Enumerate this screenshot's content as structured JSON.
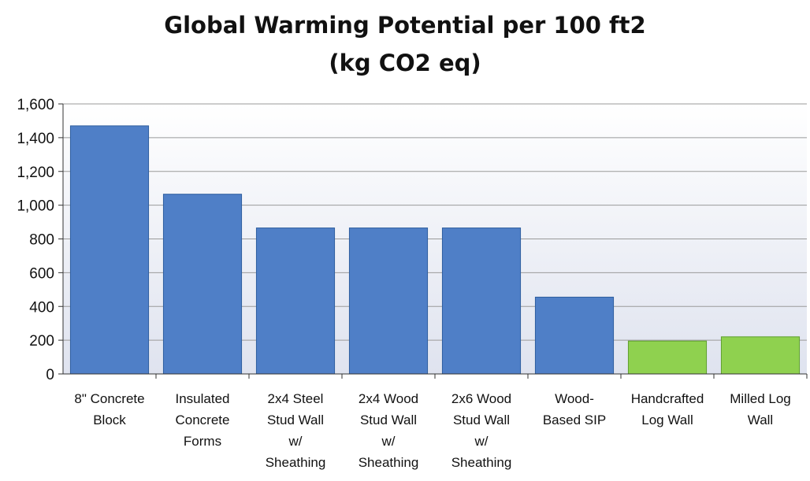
{
  "chart_data": {
    "type": "bar",
    "title_lines": [
      "Global Warming Potential per 100 ft2",
      "(kg CO2 eq)"
    ],
    "xlabel": "",
    "ylabel": "",
    "ylim": [
      0,
      1600
    ],
    "yticks": [
      0,
      200,
      400,
      600,
      800,
      1000,
      1200,
      1400,
      1600
    ],
    "ytick_labels": [
      "0",
      "200",
      "400",
      "600",
      "800",
      "1,000",
      "1,200",
      "1,400",
      "1,600"
    ],
    "grid": true,
    "legend": "none",
    "categories": [
      [
        "8\" Concrete",
        "Block"
      ],
      [
        "Insulated",
        "Concrete",
        "Forms"
      ],
      [
        "2x4 Steel",
        "Stud Wall",
        "w/",
        "Sheathing"
      ],
      [
        "2x4 Wood",
        "Stud Wall",
        "w/",
        "Sheathing"
      ],
      [
        "2x6 Wood",
        "Stud Wall",
        "w/",
        "Sheathing"
      ],
      [
        "Wood-",
        "Based SIP"
      ],
      [
        "Handcrafted",
        "Log Wall"
      ],
      [
        "Milled Log",
        "Wall"
      ]
    ],
    "values": [
      1470,
      1065,
      865,
      865,
      865,
      455,
      195,
      220
    ],
    "bar_colors": [
      "#4f7fc7",
      "#4f7fc7",
      "#4f7fc7",
      "#4f7fc7",
      "#4f7fc7",
      "#4f7fc7",
      "#8fd14f",
      "#8fd14f"
    ],
    "bar_edge_colors": [
      "#2f5f9f",
      "#2f5f9f",
      "#2f5f9f",
      "#2f5f9f",
      "#2f5f9f",
      "#2f5f9f",
      "#5f9f2f",
      "#5f9f2f"
    ],
    "plot_background": "#eef0f7"
  }
}
